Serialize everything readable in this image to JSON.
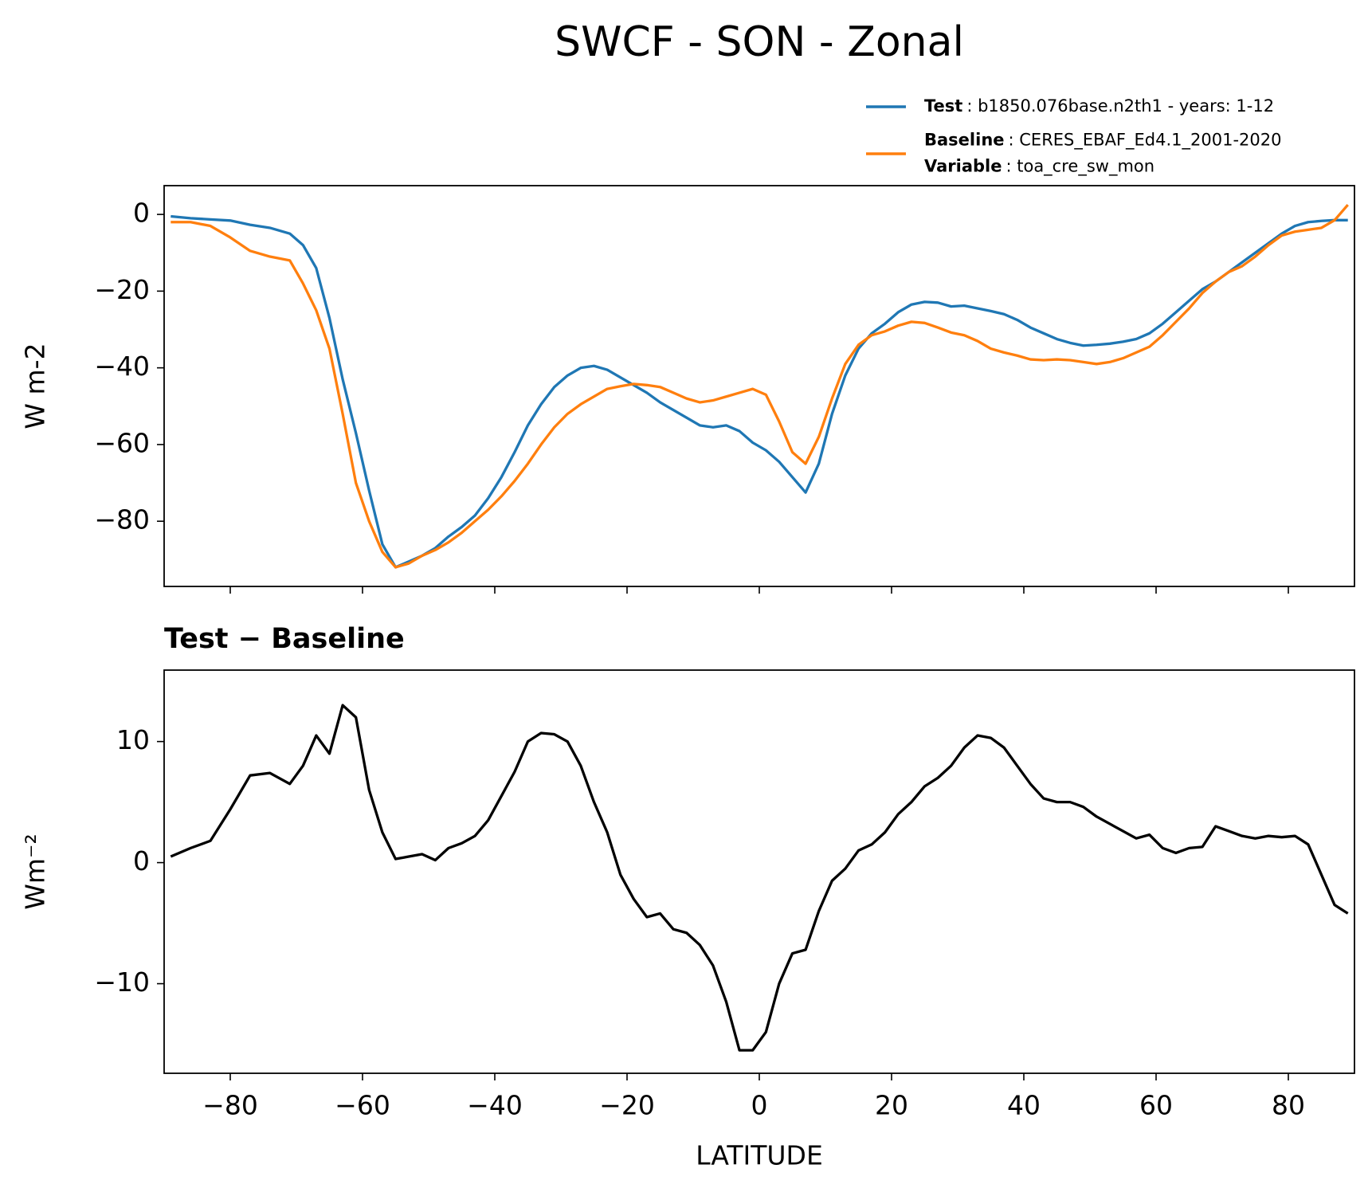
{
  "title": "SWCF - SON - Zonal",
  "chart_data": [
    {
      "type": "line",
      "ylabel": "W m-2",
      "xlim": [
        -90,
        90
      ],
      "ylim": [
        -97,
        7.5
      ],
      "xticks": [
        -80,
        -60,
        -40,
        -20,
        0,
        20,
        40,
        60,
        80
      ],
      "show_xtick_labels": false,
      "yticks": [
        {
          "value": -80,
          "label": "−80"
        },
        {
          "value": -60,
          "label": "−60"
        },
        {
          "value": -40,
          "label": "−40"
        },
        {
          "value": -20,
          "label": "−20"
        },
        0
      ],
      "x": [
        -89,
        -86,
        -83,
        -80,
        -77,
        -74,
        -71,
        -69,
        -67,
        -65,
        -63,
        -61,
        -59,
        -57,
        -55,
        -53,
        -51,
        -49,
        -47,
        -45,
        -43,
        -41,
        -39,
        -37,
        -35,
        -33,
        -31,
        -29,
        -27,
        -25,
        -23,
        -21,
        -19,
        -17,
        -15,
        -13,
        -11,
        -9,
        -7,
        -5,
        -3,
        -1,
        1,
        3,
        5,
        7,
        9,
        11,
        13,
        15,
        17,
        19,
        21,
        23,
        25,
        27,
        29,
        31,
        33,
        35,
        37,
        39,
        41,
        43,
        45,
        47,
        49,
        51,
        53,
        55,
        57,
        59,
        61,
        63,
        65,
        67,
        69,
        71,
        73,
        75,
        77,
        79,
        81,
        83,
        85,
        87,
        89
      ],
      "series": [
        {
          "name": "Test",
          "description": ": b1850.076base.n2th1 - years: 1-12",
          "color": "#1f77b4",
          "values": [
            -0.5,
            -1,
            -1.3,
            -1.6,
            -2.7,
            -3.5,
            -5,
            -8,
            -14,
            -27,
            -43,
            -57,
            -72,
            -86,
            -92,
            -90.5,
            -89,
            -87,
            -84,
            -81.5,
            -78.5,
            -74,
            -68.5,
            -62,
            -55,
            -49.5,
            -45,
            -42,
            -40,
            -39.5,
            -40.5,
            -42.5,
            -44.5,
            -46.5,
            -49,
            -51,
            -53,
            -55,
            -55.5,
            -55,
            -56.5,
            -59.5,
            -61.5,
            -64.5,
            -68.5,
            -72.5,
            -65,
            -52,
            -42,
            -35,
            -31,
            -28.5,
            -25.5,
            -23.5,
            -22.8,
            -23,
            -24,
            -23.8,
            -24.5,
            -25.2,
            -26,
            -27.5,
            -29.5,
            -31,
            -32.5,
            -33.5,
            -34.2,
            -34,
            -33.7,
            -33.2,
            -32.5,
            -31,
            -28.5,
            -25.5,
            -22.5,
            -19.5,
            -17.5,
            -15,
            -12.5,
            -10,
            -7.5,
            -5,
            -3,
            -2,
            -1.7,
            -1.5,
            -1.5
          ]
        },
        {
          "name": "Baseline",
          "description": ": CERES_EBAF_Ed4.1_2001-2020",
          "extra_name": "Variable",
          "extra_description": ": toa_cre_sw_mon",
          "color": "#ff7f0e",
          "values": [
            -2,
            -2,
            -3,
            -6,
            -9.5,
            -11,
            -12,
            -18,
            -25,
            -35,
            -52,
            -70,
            -80,
            -88,
            -92,
            -91,
            -89,
            -87.5,
            -85.5,
            -83,
            -80,
            -77,
            -73.5,
            -69.5,
            -65,
            -60,
            -55.5,
            -52,
            -49.5,
            -47.5,
            -45.5,
            -44.8,
            -44.2,
            -44.5,
            -45,
            -46.5,
            -48,
            -49,
            -48.5,
            -47.5,
            -46.5,
            -45.5,
            -47,
            -54,
            -62,
            -65,
            -58,
            -48,
            -39,
            -34,
            -31.5,
            -30.5,
            -29,
            -28,
            -28.3,
            -29.5,
            -30.8,
            -31.5,
            -33,
            -35,
            -36,
            -36.8,
            -37.8,
            -38,
            -37.8,
            -38,
            -38.5,
            -39,
            -38.5,
            -37.5,
            -36,
            -34.5,
            -31.5,
            -28,
            -24.5,
            -20.5,
            -17.5,
            -15,
            -13.5,
            -11,
            -8,
            -5.5,
            -4.5,
            -4,
            -3.5,
            -1.5,
            2.5
          ]
        }
      ]
    },
    {
      "type": "line",
      "title": "Test − Baseline",
      "xlabel": "LATITUDE",
      "ylabel": "Wm⁻²",
      "xlim": [
        -90,
        90
      ],
      "ylim": [
        -17.4,
        15.9
      ],
      "show_xtick_labels": true,
      "xticks": [
        {
          "value": -80,
          "label": "−80"
        },
        {
          "value": -60,
          "label": "−60"
        },
        {
          "value": -40,
          "label": "−40"
        },
        {
          "value": -20,
          "label": "−20"
        },
        0,
        20,
        40,
        60,
        80
      ],
      "yticks": [
        {
          "value": -10,
          "label": "−10"
        },
        0,
        10
      ],
      "x": [
        -89,
        -86,
        -83,
        -80,
        -77,
        -74,
        -71,
        -69,
        -67,
        -65,
        -63,
        -61,
        -59,
        -57,
        -55,
        -53,
        -51,
        -49,
        -47,
        -45,
        -43,
        -41,
        -39,
        -37,
        -35,
        -33,
        -31,
        -29,
        -27,
        -25,
        -23,
        -21,
        -19,
        -17,
        -15,
        -13,
        -11,
        -9,
        -7,
        -5,
        -3,
        -1,
        1,
        3,
        5,
        7,
        9,
        11,
        13,
        15,
        17,
        19,
        21,
        23,
        25,
        27,
        29,
        31,
        33,
        35,
        37,
        39,
        41,
        43,
        45,
        47,
        49,
        51,
        53,
        55,
        57,
        59,
        61,
        63,
        65,
        67,
        69,
        71,
        73,
        75,
        77,
        79,
        81,
        83,
        85,
        87,
        89
      ],
      "series": [
        {
          "color": "#000000",
          "values": [
            0.5,
            1.2,
            1.8,
            4.4,
            7.2,
            7.4,
            6.5,
            8,
            10.5,
            9,
            13,
            12,
            6,
            2.5,
            0.3,
            0.5,
            0.7,
            0.2,
            1.2,
            1.6,
            2.2,
            3.5,
            5.5,
            7.5,
            10,
            10.7,
            10.6,
            10,
            8,
            5,
            2.5,
            -1,
            -3,
            -4.5,
            -4.2,
            -5.5,
            -5.8,
            -6.8,
            -8.5,
            -11.5,
            -15.5,
            -15.5,
            -14,
            -10,
            -7.5,
            -7.2,
            -4,
            -1.5,
            -0.5,
            1,
            1.5,
            2.5,
            4,
            5,
            6.3,
            7,
            8,
            9.5,
            10.5,
            10.3,
            9.5,
            8,
            6.5,
            5.3,
            5,
            5,
            4.6,
            3.8,
            3.2,
            2.6,
            2,
            2.3,
            1.2,
            0.8,
            1.2,
            1.3,
            3,
            2.6,
            2.2,
            2,
            2.2,
            2.1,
            2.2,
            1.5,
            -1,
            -3.5,
            -4.2
          ]
        }
      ]
    }
  ]
}
